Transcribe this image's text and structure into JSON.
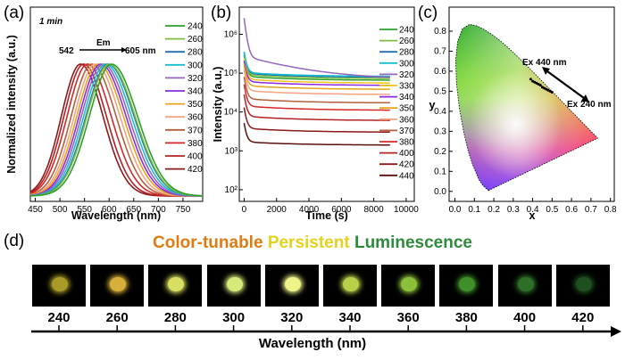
{
  "panel_labels": {
    "a": "(a)",
    "b": "(b)",
    "c": "(c)",
    "d": "(d)"
  },
  "colors": {
    "240": "#2ca02c",
    "260": "#7fbf3f",
    "280": "#1f6fb4",
    "300": "#17becf",
    "320": "#9467bd",
    "330": "#f0c419",
    "340": "#8a2be2",
    "350": "#e6a519",
    "360": "#f4a482",
    "370": "#b45f3c",
    "380": "#d62728",
    "400": "#b22222",
    "420": "#8b1a1a",
    "440": "#5c0f0f"
  },
  "chart_data": [
    {
      "type": "line",
      "panel": "a",
      "inset_text": "1 min",
      "xlabel": "Wavelength (nm)",
      "ylabel": "Normalized intensity (a.u.)",
      "xlim": [
        440,
        790
      ],
      "xticks": [
        450,
        500,
        550,
        600,
        650,
        700,
        750
      ],
      "annotations": {
        "left": "542",
        "arrow": "Em",
        "right": "605 nm"
      },
      "series": [
        {
          "name": "240",
          "peak": 605,
          "fwhm": 118
        },
        {
          "name": "260",
          "peak": 600,
          "fwhm": 118
        },
        {
          "name": "280",
          "peak": 598,
          "fwhm": 118
        },
        {
          "name": "300",
          "peak": 593,
          "fwhm": 117
        },
        {
          "name": "320",
          "peak": 588,
          "fwhm": 116
        },
        {
          "name": "340",
          "peak": 583,
          "fwhm": 115
        },
        {
          "name": "350",
          "peak": 578,
          "fwhm": 114
        },
        {
          "name": "360",
          "peak": 572,
          "fwhm": 112
        },
        {
          "name": "370",
          "peak": 565,
          "fwhm": 110
        },
        {
          "name": "380",
          "peak": 556,
          "fwhm": 108
        },
        {
          "name": "400",
          "peak": 548,
          "fwhm": 104
        },
        {
          "name": "420",
          "peak": 542,
          "fwhm": 102
        }
      ]
    },
    {
      "type": "line",
      "panel": "b",
      "xlabel": "Time (s)",
      "ylabel": "Intensity (a.u.)",
      "yscale": "log",
      "xlim": [
        -300,
        10500
      ],
      "ylim": [
        50,
        5000000
      ],
      "xticks": [
        0,
        2000,
        4000,
        6000,
        8000,
        10000
      ],
      "yticks": [
        {
          "v": 100,
          "label": "10²"
        },
        {
          "v": 1000,
          "label": "10³"
        },
        {
          "v": 10000,
          "label": "10⁴"
        },
        {
          "v": 100000,
          "label": "10⁵"
        },
        {
          "v": 1000000,
          "label": "10⁶"
        }
      ],
      "series": [
        {
          "name": "240",
          "start": 300000,
          "end": 65000
        },
        {
          "name": "260",
          "start": 330000,
          "end": 72000
        },
        {
          "name": "280",
          "start": 360000,
          "end": 78000
        },
        {
          "name": "300",
          "start": 380000,
          "end": 82000
        },
        {
          "name": "320",
          "start": 2800000,
          "end": 68000
        },
        {
          "name": "330",
          "start": 260000,
          "end": 55000
        },
        {
          "name": "340",
          "start": 220000,
          "end": 48000
        },
        {
          "name": "350",
          "start": 170000,
          "end": 38000
        },
        {
          "name": "360",
          "start": 130000,
          "end": 28000
        },
        {
          "name": "370",
          "start": 85000,
          "end": 17000
        },
        {
          "name": "380",
          "start": 55000,
          "end": 11000
        },
        {
          "name": "400",
          "start": 30000,
          "end": 6000
        },
        {
          "name": "420",
          "start": 14000,
          "end": 3000
        },
        {
          "name": "440",
          "start": 5500,
          "end": 1400
        }
      ]
    },
    {
      "type": "scatter",
      "panel": "c",
      "xlabel": "x",
      "ylabel": "y",
      "xlim": [
        -0.03,
        0.82
      ],
      "ylim": [
        -0.05,
        0.92
      ],
      "xticks": [
        0.0,
        0.1,
        0.2,
        0.3,
        0.4,
        0.5,
        0.6,
        0.7,
        0.8
      ],
      "yticks": [
        0.0,
        0.1,
        0.2,
        0.3,
        0.4,
        0.5,
        0.6,
        0.7,
        0.8
      ],
      "label_top": "Ex 440 nm",
      "label_bottom": "Ex 240 nm",
      "points": [
        [
          0.39,
          0.56
        ],
        [
          0.4,
          0.55
        ],
        [
          0.41,
          0.545
        ],
        [
          0.42,
          0.54
        ],
        [
          0.43,
          0.535
        ],
        [
          0.44,
          0.53
        ],
        [
          0.45,
          0.52
        ],
        [
          0.46,
          0.515
        ],
        [
          0.47,
          0.51
        ],
        [
          0.48,
          0.505
        ],
        [
          0.49,
          0.5
        ],
        [
          0.5,
          0.495
        ]
      ]
    }
  ],
  "panel_d": {
    "title_parts": [
      {
        "text": "Color-tunable ",
        "color": "#e07b12"
      },
      {
        "text": "Persistent ",
        "color": "#e6d21c"
      },
      {
        "text": "Luminescence",
        "color": "#2e8b3e"
      }
    ],
    "thumbnails": [
      {
        "label": "240",
        "glow": "#a89a28"
      },
      {
        "label": "260",
        "glow": "#d6b03a"
      },
      {
        "label": "280",
        "glow": "#d9df62"
      },
      {
        "label": "300",
        "glow": "#d5ea7a"
      },
      {
        "label": "320",
        "glow": "#eef48a"
      },
      {
        "label": "340",
        "glow": "#b8cf4a"
      },
      {
        "label": "360",
        "glow": "#8cbf3a"
      },
      {
        "label": "380",
        "glow": "#3f8f2a"
      },
      {
        "label": "400",
        "glow": "#2f6e28"
      },
      {
        "label": "420",
        "glow": "#1f4f1f"
      }
    ],
    "xlabel": "Wavelength (nm)"
  }
}
